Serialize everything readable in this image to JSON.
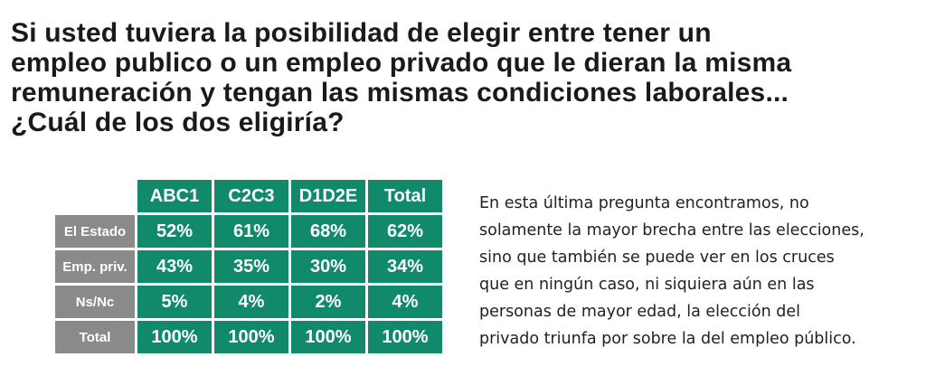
{
  "question": {
    "lines": [
      "Si usted tuviera la posibilidad de elegir entre tener un",
      "empleo publico o un empleo privado que le dieran la misma",
      "remuneración y tengan las mismas condiciones laborales...",
      "¿Cuál de los dos eligiría?"
    ]
  },
  "table": {
    "columns": [
      "ABC1",
      "C2C3",
      "D1D2E",
      "Total"
    ],
    "rows": [
      {
        "label": "El Estado",
        "values": [
          "52%",
          "61%",
          "68%",
          "62%"
        ]
      },
      {
        "label": "Emp. priv.",
        "values": [
          "43%",
          "35%",
          "30%",
          "34%"
        ]
      },
      {
        "label": "Ns/Nc",
        "values": [
          "5%",
          "4%",
          "2%",
          "4%"
        ]
      },
      {
        "label": "Total",
        "values": [
          "100%",
          "100%",
          "100%",
          "100%"
        ]
      }
    ]
  },
  "commentary": {
    "lines": [
      "En esta última pregunta encontramos, no",
      "solamente la mayor brecha entre las elecciones,",
      "sino que también se puede ver en los cruces",
      "que en ningún caso, ni siquiera aún en las",
      "personas de mayor edad, la elección del",
      "privado triunfa por sobre la del empleo público."
    ]
  },
  "colors": {
    "header_green": "#118a6c",
    "row_label_gray": "#8a8a8a",
    "text_dark": "#1a1a1a"
  }
}
